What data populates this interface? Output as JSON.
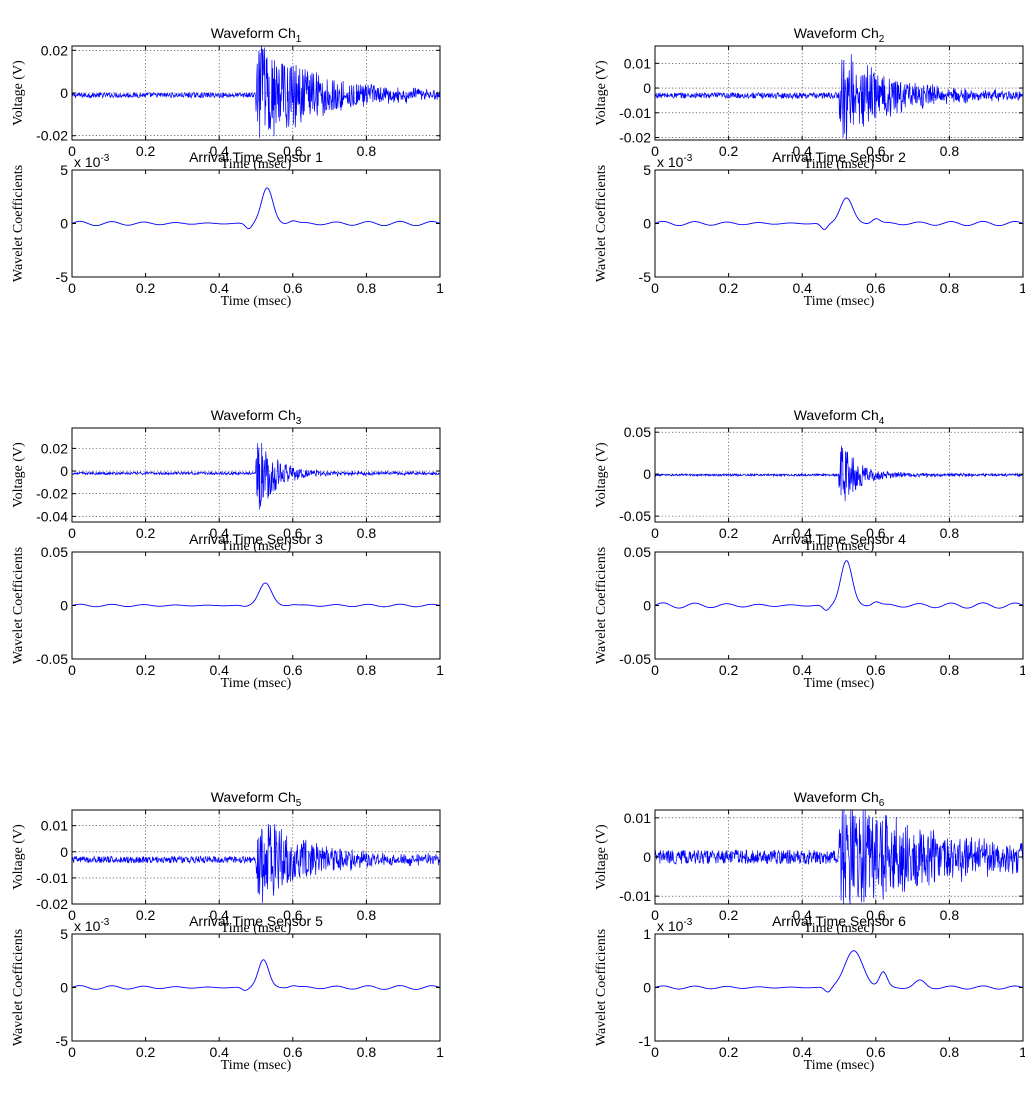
{
  "chart_data": [
    {
      "type": "line",
      "title": "Waveform Ch",
      "title_sub": "1",
      "xlabel": "Time (msec)",
      "ylabel": "Voltage (V)",
      "xlim": [
        0,
        1
      ],
      "ylim": [
        -0.022,
        0.022
      ],
      "xticks": [
        0,
        0.2,
        0.4,
        0.6,
        0.8
      ],
      "xtick_labels": [
        "0",
        "0.2",
        "0.4",
        "0.6",
        "0.8"
      ],
      "yticks": [
        -0.02,
        0,
        0.02
      ],
      "ytick_labels": [
        "-0.02",
        "0",
        "0.02"
      ],
      "grid": true,
      "series": [
        {
          "color": "#0000ff",
          "baseline": -0.001,
          "noise": 0.0012,
          "onset": 0.5,
          "peak": 0.022,
          "decay": 0.15,
          "tail": 0.0045
        }
      ]
    },
    {
      "type": "line",
      "title": "Arrival Time Sensor 1",
      "xlabel": "Time (msec)",
      "ylabel": "Wavelet Coefficients",
      "exponent": "x 10",
      "exponent_power": "-3",
      "xlim": [
        0,
        1
      ],
      "ylim": [
        -5,
        5
      ],
      "xticks": [
        0,
        0.2,
        0.4,
        0.6,
        0.8,
        1
      ],
      "xtick_labels": [
        "0",
        "0.2",
        "0.4",
        "0.6",
        "0.8",
        "1"
      ],
      "yticks": [
        -5,
        0,
        5
      ],
      "ytick_labels": [
        "-5",
        "0",
        "5"
      ],
      "grid": false,
      "series": [
        {
          "color": "#0000ff",
          "smooth": true,
          "ripple": 0.2,
          "peak_x": 0.53,
          "peak_y": 3.3,
          "width": 0.022,
          "dip_x": 0.48,
          "dip_y": -0.5,
          "bump_x": 0.6,
          "bump_y": 0.3
        }
      ]
    },
    {
      "type": "line",
      "title": "Waveform Ch",
      "title_sub": "2",
      "xlabel": "Time (msec)",
      "ylabel": "Voltage (V)",
      "xlim": [
        0,
        1
      ],
      "ylim": [
        -0.021,
        0.017
      ],
      "xticks": [
        0,
        0.2,
        0.4,
        0.6,
        0.8
      ],
      "xtick_labels": [
        "0",
        "0.2",
        "0.4",
        "0.6",
        "0.8"
      ],
      "yticks": [
        -0.02,
        -0.01,
        0,
        0.01
      ],
      "ytick_labels": [
        "-0.02",
        "-0.01",
        "0",
        "0.01"
      ],
      "grid": true,
      "series": [
        {
          "color": "#0000ff",
          "baseline": -0.003,
          "noise": 0.0012,
          "onset": 0.5,
          "peak": 0.017,
          "decay": 0.12,
          "tail": 0.0035
        }
      ]
    },
    {
      "type": "line",
      "title": "Arrival Time Sensor 2",
      "xlabel": "Time (msec)",
      "ylabel": "Wavelet Coefficients",
      "exponent": "x 10",
      "exponent_power": "-3",
      "xlim": [
        0,
        1
      ],
      "ylim": [
        -5,
        5
      ],
      "xticks": [
        0,
        0.2,
        0.4,
        0.6,
        0.8,
        1
      ],
      "xtick_labels": [
        "0",
        "0.2",
        "0.4",
        "0.6",
        "0.8",
        "1"
      ],
      "yticks": [
        -5,
        0,
        5
      ],
      "ytick_labels": [
        "-5",
        "0",
        "5"
      ],
      "grid": false,
      "series": [
        {
          "color": "#0000ff",
          "smooth": true,
          "ripple": 0.2,
          "peak_x": 0.52,
          "peak_y": 2.4,
          "width": 0.024,
          "dip_x": 0.46,
          "dip_y": -0.6,
          "bump_x": 0.6,
          "bump_y": 0.5
        }
      ]
    },
    {
      "type": "line",
      "title": "Waveform Ch",
      "title_sub": "3",
      "xlabel": "Time (msec)",
      "ylabel": "Voltage (V)",
      "xlim": [
        0,
        1
      ],
      "ylim": [
        -0.045,
        0.038
      ],
      "xticks": [
        0,
        0.2,
        0.4,
        0.6,
        0.8
      ],
      "xtick_labels": [
        "0",
        "0.2",
        "0.4",
        "0.6",
        "0.8"
      ],
      "yticks": [
        -0.04,
        -0.02,
        0,
        0.02
      ],
      "ytick_labels": [
        "-0.04",
        "-0.02",
        "0",
        "0.02"
      ],
      "grid": true,
      "series": [
        {
          "color": "#0000ff",
          "baseline": -0.002,
          "noise": 0.0012,
          "onset": 0.5,
          "peak": 0.043,
          "decay": 0.045,
          "tail": 0.002
        }
      ]
    },
    {
      "type": "line",
      "title": "Arrival Time Sensor 3",
      "xlabel": "Time (msec)",
      "ylabel": "Wavelet Coefficients",
      "xlim": [
        0,
        1
      ],
      "ylim": [
        -0.05,
        0.05
      ],
      "xticks": [
        0,
        0.2,
        0.4,
        0.6,
        0.8,
        1
      ],
      "xtick_labels": [
        "0",
        "0.2",
        "0.4",
        "0.6",
        "0.8",
        "1"
      ],
      "yticks": [
        -0.05,
        0,
        0.05
      ],
      "ytick_labels": [
        "-0.05",
        "0",
        "0.05"
      ],
      "grid": false,
      "series": [
        {
          "color": "#0000ff",
          "smooth": true,
          "ripple": 0.0012,
          "peak_x": 0.525,
          "peak_y": 0.021,
          "width": 0.024,
          "dip_x": 0.47,
          "dip_y": -0.001,
          "bump_x": 0.6,
          "bump_y": 0.001
        }
      ]
    },
    {
      "type": "line",
      "title": "Waveform Ch",
      "title_sub": "4",
      "xlabel": "Time (msec)",
      "ylabel": "Voltage (V)",
      "xlim": [
        0,
        1
      ],
      "ylim": [
        -0.057,
        0.055
      ],
      "xticks": [
        0,
        0.2,
        0.4,
        0.6,
        0.8
      ],
      "xtick_labels": [
        "0",
        "0.2",
        "0.4",
        "0.6",
        "0.8"
      ],
      "yticks": [
        -0.05,
        0,
        0.05
      ],
      "ytick_labels": [
        "-0.05",
        "0",
        "0.05"
      ],
      "grid": true,
      "series": [
        {
          "color": "#0000ff",
          "baseline": -0.001,
          "noise": 0.0012,
          "onset": 0.5,
          "peak": 0.052,
          "decay": 0.04,
          "tail": 0.003
        }
      ]
    },
    {
      "type": "line",
      "title": "Arrival Time Sensor 4",
      "xlabel": "Time (msec)",
      "ylabel": "Wavelet Coefficients",
      "xlim": [
        0,
        1
      ],
      "ylim": [
        -0.05,
        0.05
      ],
      "xticks": [
        0,
        0.2,
        0.4,
        0.6,
        0.8,
        1
      ],
      "xtick_labels": [
        "0",
        "0.2",
        "0.4",
        "0.6",
        "0.8",
        "1"
      ],
      "yticks": [
        -0.05,
        0,
        0.05
      ],
      "ytick_labels": [
        "-0.05",
        "0",
        "0.05"
      ],
      "grid": false,
      "series": [
        {
          "color": "#0000ff",
          "smooth": true,
          "ripple": 0.0025,
          "peak_x": 0.52,
          "peak_y": 0.042,
          "width": 0.022,
          "dip_x": 0.465,
          "dip_y": -0.005,
          "bump_x": 0.6,
          "bump_y": 0.004
        }
      ]
    },
    {
      "type": "line",
      "title": "Waveform Ch",
      "title_sub": "5",
      "xlabel": "Time (msec)",
      "ylabel": "Voltage (V)",
      "xlim": [
        0,
        1
      ],
      "ylim": [
        -0.02,
        0.016
      ],
      "xticks": [
        0,
        0.2,
        0.4,
        0.6,
        0.8
      ],
      "xtick_labels": [
        "0",
        "0.2",
        "0.4",
        "0.6",
        "0.8"
      ],
      "yticks": [
        -0.02,
        -0.01,
        0,
        0.01
      ],
      "ytick_labels": [
        "-0.02",
        "-0.01",
        "0",
        "0.01"
      ],
      "grid": true,
      "series": [
        {
          "color": "#0000ff",
          "baseline": -0.003,
          "noise": 0.0013,
          "onset": 0.5,
          "peak": 0.016,
          "decay": 0.1,
          "tail": 0.004
        }
      ]
    },
    {
      "type": "line",
      "title": "Arrival Time Sensor 5",
      "xlabel": "Time (msec)",
      "ylabel": "Wavelet Coefficients",
      "exponent": "x 10",
      "exponent_power": "-3",
      "xlim": [
        0,
        1
      ],
      "ylim": [
        -5,
        5
      ],
      "xticks": [
        0,
        0.2,
        0.4,
        0.6,
        0.8,
        1
      ],
      "xtick_labels": [
        "0",
        "0.2",
        "0.4",
        "0.6",
        "0.8",
        "1"
      ],
      "yticks": [
        -5,
        0,
        5
      ],
      "ytick_labels": [
        "-5",
        "0",
        "5"
      ],
      "grid": false,
      "series": [
        {
          "color": "#0000ff",
          "smooth": true,
          "ripple": 0.18,
          "peak_x": 0.52,
          "peak_y": 2.6,
          "width": 0.02,
          "dip_x": 0.47,
          "dip_y": -0.3,
          "bump_x": 0.6,
          "bump_y": 0.2
        }
      ]
    },
    {
      "type": "line",
      "title": "Waveform Ch",
      "title_sub": "6",
      "xlabel": "Time (msec)",
      "ylabel": "Voltage (V)",
      "xlim": [
        0,
        1
      ],
      "ylim": [
        -0.012,
        0.012
      ],
      "xticks": [
        0,
        0.2,
        0.4,
        0.6,
        0.8
      ],
      "xtick_labels": [
        "0",
        "0.2",
        "0.4",
        "0.6",
        "0.8"
      ],
      "yticks": [
        -0.01,
        0,
        0.01
      ],
      "ytick_labels": [
        "-0.01",
        "0",
        "0.01"
      ],
      "grid": true,
      "series": [
        {
          "color": "#0000ff",
          "baseline": 0.0,
          "noise": 0.0018,
          "onset": 0.5,
          "peak": 0.012,
          "decay": 0.25,
          "tail": 0.004
        }
      ]
    },
    {
      "type": "line",
      "title": "Arrival Time Sensor 6",
      "xlabel": "Time (msec)",
      "ylabel": "Wavelet Coefficients",
      "exponent": "x 10",
      "exponent_power": "-3",
      "xlim": [
        0,
        1
      ],
      "ylim": [
        -1,
        1
      ],
      "xticks": [
        0,
        0.2,
        0.4,
        0.6,
        0.8,
        1
      ],
      "xtick_labels": [
        "0",
        "0.2",
        "0.4",
        "0.6",
        "0.8",
        "1"
      ],
      "yticks": [
        -1,
        0,
        1
      ],
      "ytick_labels": [
        "-1",
        "0",
        "1"
      ],
      "grid": false,
      "series": [
        {
          "color": "#0000ff",
          "smooth": true,
          "ripple": 0.03,
          "peak_x": 0.54,
          "peak_y": 0.68,
          "width": 0.035,
          "dip_x": 0.47,
          "dip_y": -0.1,
          "bump_x": 0.62,
          "bump_y": 0.28,
          "tail_x": 0.72,
          "tail_y": 0.12
        }
      ]
    }
  ]
}
